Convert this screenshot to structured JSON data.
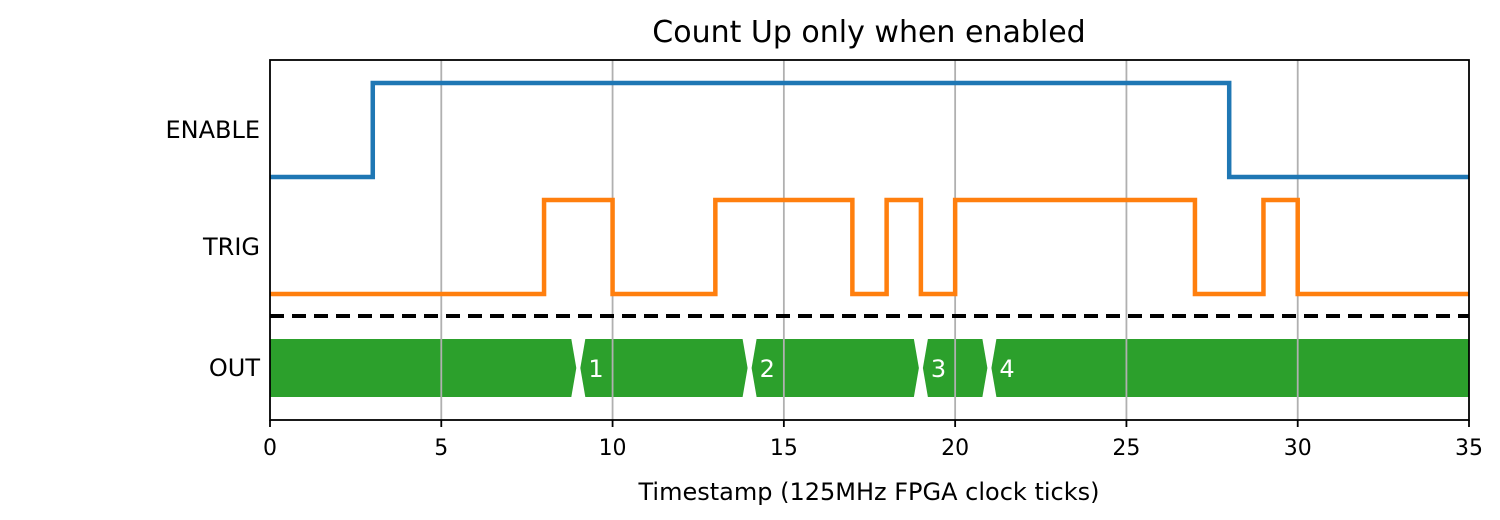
{
  "chart_data": {
    "type": "line",
    "title": "Count Up only when enabled",
    "xlabel": "Timestamp (125MHz FPGA clock ticks)",
    "xlim": [
      0,
      35
    ],
    "xticks": [
      0,
      5,
      10,
      15,
      20,
      25,
      30,
      35
    ],
    "grid": "vertical",
    "signals": [
      {
        "name": "ENABLE",
        "kind": "digital",
        "color": "#1f77b4",
        "transitions": [
          [
            0,
            0
          ],
          [
            3,
            1
          ],
          [
            28,
            0
          ]
        ]
      },
      {
        "name": "TRIG",
        "kind": "digital",
        "color": "#ff7f0e",
        "transitions": [
          [
            0,
            0
          ],
          [
            8,
            1
          ],
          [
            10,
            0
          ],
          [
            13,
            1
          ],
          [
            17,
            0
          ],
          [
            18,
            1
          ],
          [
            19,
            0
          ],
          [
            20,
            1
          ],
          [
            27,
            0
          ],
          [
            29,
            1
          ],
          [
            30,
            0
          ]
        ]
      }
    ],
    "bus": {
      "name": "OUT",
      "color": "#2ca02c",
      "segments": [
        {
          "start": 0,
          "end": 9,
          "label": ""
        },
        {
          "start": 9,
          "end": 14,
          "label": "1"
        },
        {
          "start": 14,
          "end": 19,
          "label": "2"
        },
        {
          "start": 19,
          "end": 21,
          "label": "3"
        },
        {
          "start": 21,
          "end": 35,
          "label": "4"
        }
      ]
    }
  }
}
